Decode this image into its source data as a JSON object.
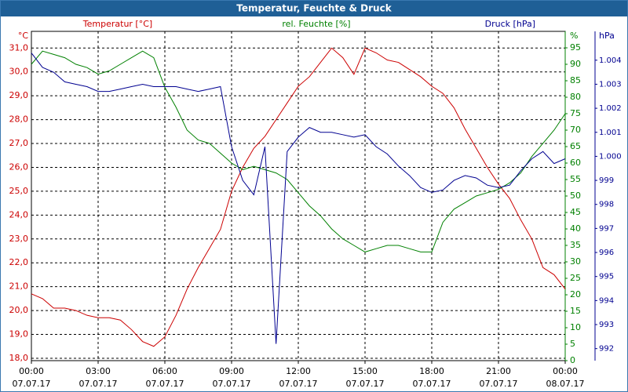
{
  "chart_data": {
    "type": "line",
    "title": "Temperatur, Feuchte & Druck",
    "x": [
      0,
      0.5,
      1,
      1.5,
      2,
      2.5,
      3,
      3.5,
      4,
      4.5,
      5,
      5.5,
      6,
      6.5,
      7,
      7.5,
      8,
      8.5,
      9,
      9.5,
      10,
      10.5,
      11,
      11.5,
      12,
      12.5,
      13,
      13.5,
      14,
      14.5,
      15,
      15.5,
      16,
      16.5,
      17,
      17.5,
      18,
      18.5,
      19,
      19.5,
      20,
      20.5,
      21,
      21.5,
      22,
      22.5,
      23,
      23.5,
      24
    ],
    "xlim": [
      0,
      24
    ],
    "xticks": [
      {
        "value": 0,
        "label": "00:00",
        "date": "07.07.17"
      },
      {
        "value": 3,
        "label": "03:00",
        "date": "07.07.17"
      },
      {
        "value": 6,
        "label": "06:00",
        "date": "07.07.17"
      },
      {
        "value": 9,
        "label": "09:00",
        "date": "07.07.17"
      },
      {
        "value": 12,
        "label": "12:00",
        "date": "07.07.17"
      },
      {
        "value": 15,
        "label": "15:00",
        "date": "07.07.17"
      },
      {
        "value": 18,
        "label": "18:00",
        "date": "07.07.17"
      },
      {
        "value": 21,
        "label": "21:00",
        "date": "07.07.17"
      },
      {
        "value": 24,
        "label": "00:00",
        "date": "08.07.17"
      }
    ],
    "ylim": [
      17.9,
      31.7
    ],
    "yunit": "°C",
    "yticks": [
      {
        "value": 18,
        "label": "18,0"
      },
      {
        "value": 19,
        "label": "19,0"
      },
      {
        "value": 20,
        "label": "20,0"
      },
      {
        "value": 21,
        "label": "21,0"
      },
      {
        "value": 22,
        "label": "22,0"
      },
      {
        "value": 23,
        "label": "23,0"
      },
      {
        "value": 24,
        "label": "24,0"
      },
      {
        "value": 25,
        "label": "25,0"
      },
      {
        "value": 26,
        "label": "26,0"
      },
      {
        "value": 27,
        "label": "27,0"
      },
      {
        "value": 28,
        "label": "28,0"
      },
      {
        "value": 29,
        "label": "29,0"
      },
      {
        "value": 30,
        "label": "30,0"
      },
      {
        "value": 31,
        "label": "31,0"
      }
    ],
    "y2lim": [
      0,
      100
    ],
    "y2unit": "%",
    "y2ticks": [
      0,
      5,
      10,
      15,
      20,
      25,
      30,
      35,
      40,
      45,
      50,
      55,
      60,
      65,
      70,
      75,
      80,
      85,
      90,
      95
    ],
    "y3lim": [
      991.5,
      1005.2
    ],
    "y3unit": "hPa",
    "y3ticks": [
      992,
      993,
      994,
      995,
      996,
      997,
      998,
      999,
      {
        "value": 1000,
        "label": "1.000"
      },
      {
        "value": 1001,
        "label": "1.001"
      },
      {
        "value": 1002,
        "label": "1.002"
      },
      {
        "value": 1003,
        "label": "1.003"
      },
      {
        "value": 1004,
        "label": "1.004"
      }
    ],
    "grid": true,
    "series": [
      {
        "name": "Temperatur [°C]",
        "color": "#cc0000",
        "axis": "y",
        "values": [
          20.7,
          20.5,
          20.1,
          20.1,
          20.0,
          19.8,
          19.7,
          19.7,
          19.6,
          19.2,
          18.7,
          18.5,
          18.9,
          19.8,
          20.9,
          21.8,
          22.6,
          23.4,
          25.0,
          26.0,
          26.8,
          27.3,
          28.0,
          28.7,
          29.4,
          29.8,
          30.4,
          31.0,
          30.6,
          29.9,
          31.0,
          30.8,
          30.5,
          30.4,
          30.1,
          29.8,
          29.4,
          29.1,
          28.5,
          27.6,
          26.8,
          26.0,
          25.3,
          24.7,
          23.8,
          23.0,
          21.8,
          21.5,
          20.9
        ]
      },
      {
        "name": "rel. Feuchte [%]",
        "color": "#008000",
        "axis": "y2",
        "values": [
          90,
          94,
          93,
          92,
          90,
          89,
          87,
          88,
          90,
          92,
          94,
          92,
          83,
          77,
          70,
          67,
          66,
          63,
          60,
          58,
          59,
          58,
          57,
          55,
          51,
          47,
          44,
          40,
          37,
          35,
          33,
          34,
          35,
          35,
          34,
          33,
          33,
          42,
          46,
          48,
          50,
          51,
          52,
          54,
          57,
          62,
          66,
          70,
          75
        ]
      },
      {
        "name": "Druck [hPa]",
        "color": "#000090",
        "axis": "y3",
        "values": [
          1004.3,
          1003.7,
          1003.5,
          1003.1,
          1003.0,
          1002.9,
          1002.7,
          1002.7,
          1002.8,
          1002.9,
          1003.0,
          1002.9,
          1002.9,
          1002.9,
          1002.8,
          1002.7,
          1002.8,
          1002.9,
          1000.4,
          999.0,
          998.4,
          1000.4,
          992.2,
          1000.2,
          1000.8,
          1001.2,
          1001.0,
          1001.0,
          1000.9,
          1000.8,
          1000.9,
          1000.4,
          1000.1,
          999.6,
          999.2,
          998.7,
          998.5,
          998.6,
          999.0,
          999.2,
          999.1,
          998.8,
          998.7,
          998.8,
          999.4,
          999.9,
          1000.2,
          999.7,
          999.9
        ]
      }
    ]
  }
}
